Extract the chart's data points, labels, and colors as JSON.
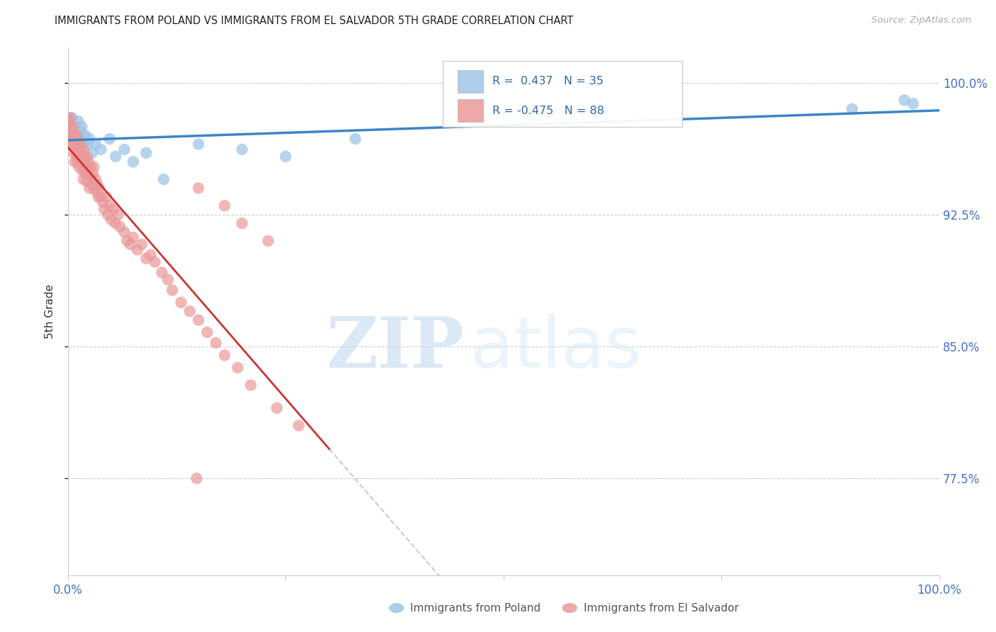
{
  "title": "IMMIGRANTS FROM POLAND VS IMMIGRANTS FROM EL SALVADOR 5TH GRADE CORRELATION CHART",
  "source": "Source: ZipAtlas.com",
  "ylabel": "5th Grade",
  "ytick_labels": [
    "100.0%",
    "92.5%",
    "85.0%",
    "77.5%"
  ],
  "ytick_values": [
    1.0,
    0.925,
    0.85,
    0.775
  ],
  "xlim": [
    0.0,
    1.0
  ],
  "ylim": [
    0.72,
    1.02
  ],
  "legend_poland_label": "Immigrants from Poland",
  "legend_salvador_label": "Immigrants from El Salvador",
  "color_poland": "#9fc5e8",
  "color_salvador": "#ea9999",
  "color_trend_poland": "#3d85c8",
  "color_trend_salvador": "#cc3333",
  "color_trend_dashed": "#cccccc",
  "poland_x": [
    0.001,
    0.002,
    0.003,
    0.004,
    0.005,
    0.006,
    0.007,
    0.008,
    0.009,
    0.01,
    0.011,
    0.012,
    0.013,
    0.015,
    0.016,
    0.018,
    0.02,
    0.022,
    0.025,
    0.028,
    0.032,
    0.038,
    0.048,
    0.055,
    0.065,
    0.075,
    0.09,
    0.11,
    0.15,
    0.2,
    0.25,
    0.33,
    0.9,
    0.96,
    0.97
  ],
  "poland_y": [
    0.98,
    0.978,
    0.975,
    0.972,
    0.98,
    0.975,
    0.972,
    0.968,
    0.975,
    0.97,
    0.972,
    0.978,
    0.968,
    0.972,
    0.975,
    0.965,
    0.97,
    0.965,
    0.968,
    0.96,
    0.965,
    0.962,
    0.968,
    0.958,
    0.962,
    0.955,
    0.96,
    0.945,
    0.965,
    0.962,
    0.958,
    0.968,
    0.985,
    0.99,
    0.988
  ],
  "salvador_x": [
    0.001,
    0.001,
    0.002,
    0.002,
    0.003,
    0.003,
    0.004,
    0.004,
    0.005,
    0.005,
    0.006,
    0.006,
    0.007,
    0.007,
    0.008,
    0.008,
    0.009,
    0.01,
    0.01,
    0.011,
    0.011,
    0.012,
    0.012,
    0.013,
    0.013,
    0.014,
    0.015,
    0.015,
    0.016,
    0.017,
    0.018,
    0.018,
    0.019,
    0.02,
    0.02,
    0.021,
    0.022,
    0.022,
    0.023,
    0.024,
    0.025,
    0.025,
    0.026,
    0.027,
    0.028,
    0.029,
    0.03,
    0.03,
    0.032,
    0.033,
    0.034,
    0.035,
    0.036,
    0.038,
    0.04,
    0.042,
    0.044,
    0.046,
    0.048,
    0.05,
    0.052,
    0.055,
    0.058,
    0.06,
    0.065,
    0.068,
    0.072,
    0.075,
    0.08,
    0.085,
    0.09,
    0.095,
    0.1,
    0.108,
    0.115,
    0.12,
    0.13,
    0.14,
    0.15,
    0.16,
    0.17,
    0.18,
    0.195,
    0.21,
    0.24,
    0.265,
    0.15,
    0.18,
    0.2,
    0.23
  ],
  "salvador_y": [
    0.978,
    0.972,
    0.975,
    0.97,
    0.968,
    0.98,
    0.972,
    0.965,
    0.975,
    0.968,
    0.972,
    0.965,
    0.97,
    0.96,
    0.968,
    0.955,
    0.965,
    0.97,
    0.96,
    0.968,
    0.955,
    0.965,
    0.958,
    0.96,
    0.952,
    0.965,
    0.96,
    0.955,
    0.958,
    0.95,
    0.962,
    0.945,
    0.958,
    0.955,
    0.948,
    0.952,
    0.958,
    0.944,
    0.95,
    0.955,
    0.948,
    0.94,
    0.952,
    0.945,
    0.942,
    0.948,
    0.952,
    0.94,
    0.945,
    0.938,
    0.942,
    0.935,
    0.94,
    0.935,
    0.932,
    0.928,
    0.935,
    0.925,
    0.93,
    0.922,
    0.928,
    0.92,
    0.925,
    0.918,
    0.915,
    0.91,
    0.908,
    0.912,
    0.905,
    0.908,
    0.9,
    0.902,
    0.898,
    0.892,
    0.888,
    0.882,
    0.875,
    0.87,
    0.865,
    0.858,
    0.852,
    0.845,
    0.838,
    0.828,
    0.815,
    0.805,
    0.94,
    0.93,
    0.92,
    0.91
  ],
  "outlier_x": [
    0.148
  ],
  "outlier_y": [
    0.775
  ]
}
